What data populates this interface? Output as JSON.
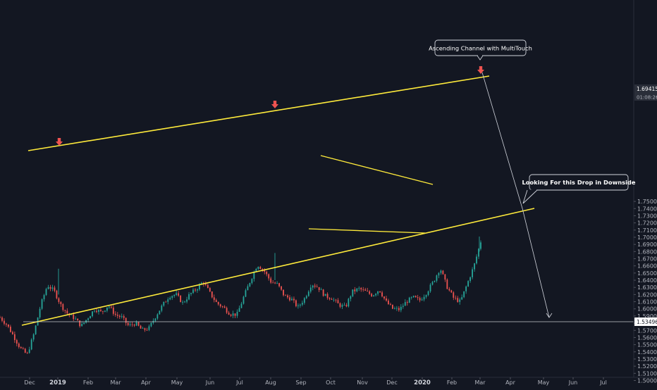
{
  "colors": {
    "background": "#131722",
    "up": "#26a69a",
    "down": "#ef5350",
    "trendline": "#ffeb3b",
    "arrow_marker": "#ef5350",
    "projection": "#d1d4dc",
    "axis_text": "#b2b5be"
  },
  "chart_data": {
    "type": "candlestick",
    "title": "",
    "ylim": [
      1.5,
      1.75
    ],
    "y_ticks": [
      "1.50000",
      "1.51000",
      "1.52000",
      "1.53000",
      "1.54000",
      "1.55000",
      "1.56000",
      "1.57000",
      "1.58000",
      "1.59000",
      "1.60000",
      "1.61000",
      "1.62000",
      "1.63000",
      "1.64000",
      "1.65000",
      "1.66000",
      "1.67000",
      "1.68000",
      "1.69000",
      "1.70000",
      "1.71000",
      "1.72000",
      "1.73000",
      "1.74000",
      "1.75000"
    ],
    "x_ticks": [
      {
        "label": "Dec",
        "bold": false
      },
      {
        "label": "2019",
        "bold": true
      },
      {
        "label": "Feb",
        "bold": false
      },
      {
        "label": "Mar",
        "bold": false
      },
      {
        "label": "Apr",
        "bold": false
      },
      {
        "label": "May",
        "bold": false
      },
      {
        "label": "Jun",
        "bold": false
      },
      {
        "label": "Jul",
        "bold": false
      },
      {
        "label": "Aug",
        "bold": false
      },
      {
        "label": "Sep",
        "bold": false
      },
      {
        "label": "Oct",
        "bold": false
      },
      {
        "label": "Nov",
        "bold": false
      },
      {
        "label": "Dec",
        "bold": false
      },
      {
        "label": "2020",
        "bold": true
      },
      {
        "label": "Feb",
        "bold": false
      },
      {
        "label": "Mar",
        "bold": false
      },
      {
        "label": "Apr",
        "bold": false
      },
      {
        "label": "May",
        "bold": false
      },
      {
        "label": "Jun",
        "bold": false
      },
      {
        "label": "Jul",
        "bold": false
      }
    ],
    "price_path": [
      1.588,
      1.578,
      1.562,
      1.545,
      1.536,
      1.565,
      1.605,
      1.633,
      1.625,
      1.605,
      1.593,
      1.587,
      1.576,
      1.588,
      1.6,
      1.595,
      1.605,
      1.592,
      1.588,
      1.576,
      1.58,
      1.57,
      1.573,
      1.59,
      1.605,
      1.618,
      1.62,
      1.608,
      1.62,
      1.628,
      1.638,
      1.622,
      1.608,
      1.602,
      1.593,
      1.592,
      1.617,
      1.64,
      1.662,
      1.653,
      1.638,
      1.634,
      1.618,
      1.614,
      1.602,
      1.615,
      1.635,
      1.63,
      1.618,
      1.615,
      1.606,
      1.602,
      1.624,
      1.628,
      1.624,
      1.619,
      1.627,
      1.61,
      1.6,
      1.599,
      1.61,
      1.616,
      1.612,
      1.623,
      1.638,
      1.657,
      1.631,
      1.615,
      1.61,
      1.635,
      1.66,
      1.694
    ],
    "current_price": "1.69415",
    "countdown": "01:08:26",
    "support_level": "1.53496"
  },
  "annotations": {
    "channel_label": "Ascending Channel with MultiTouch",
    "drop_label": "Looking For this Drop in Downside"
  }
}
